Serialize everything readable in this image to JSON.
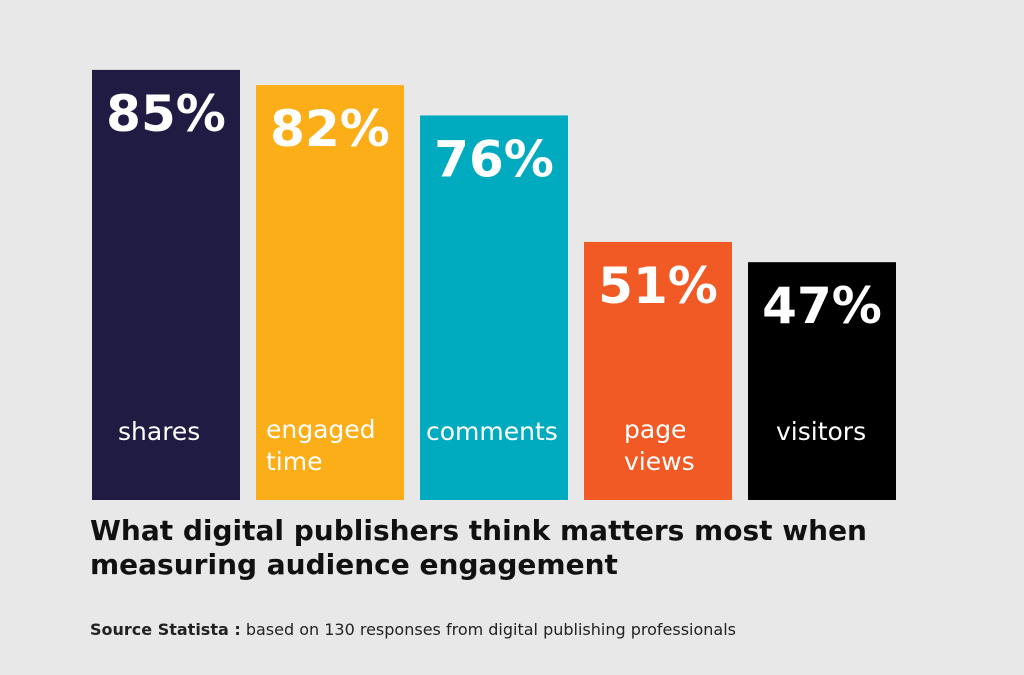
{
  "chart_data": {
    "type": "bar",
    "categories": [
      "shares",
      "engaged time",
      "comments",
      "page views",
      "visitors"
    ],
    "category_lines": [
      [
        "shares"
      ],
      [
        "engaged",
        "time"
      ],
      [
        "comments"
      ],
      [
        "page",
        "views"
      ],
      [
        "visitors"
      ]
    ],
    "values": [
      85,
      82,
      76,
      51,
      47
    ],
    "value_labels": [
      "85%",
      "82%",
      "76%",
      "51%",
      "47%"
    ],
    "bar_colors": [
      "#201b42",
      "#fbae17",
      "#00aabf",
      "#f15a24",
      "#000000"
    ],
    "title": " What digital publishers think matters most when\nmeasuring audience engagement",
    "xlabel": "",
    "ylabel": "",
    "grid": false
  },
  "source": {
    "label": "Source Statista :",
    "text": " based on 130 responses from digital publishing professionals"
  }
}
